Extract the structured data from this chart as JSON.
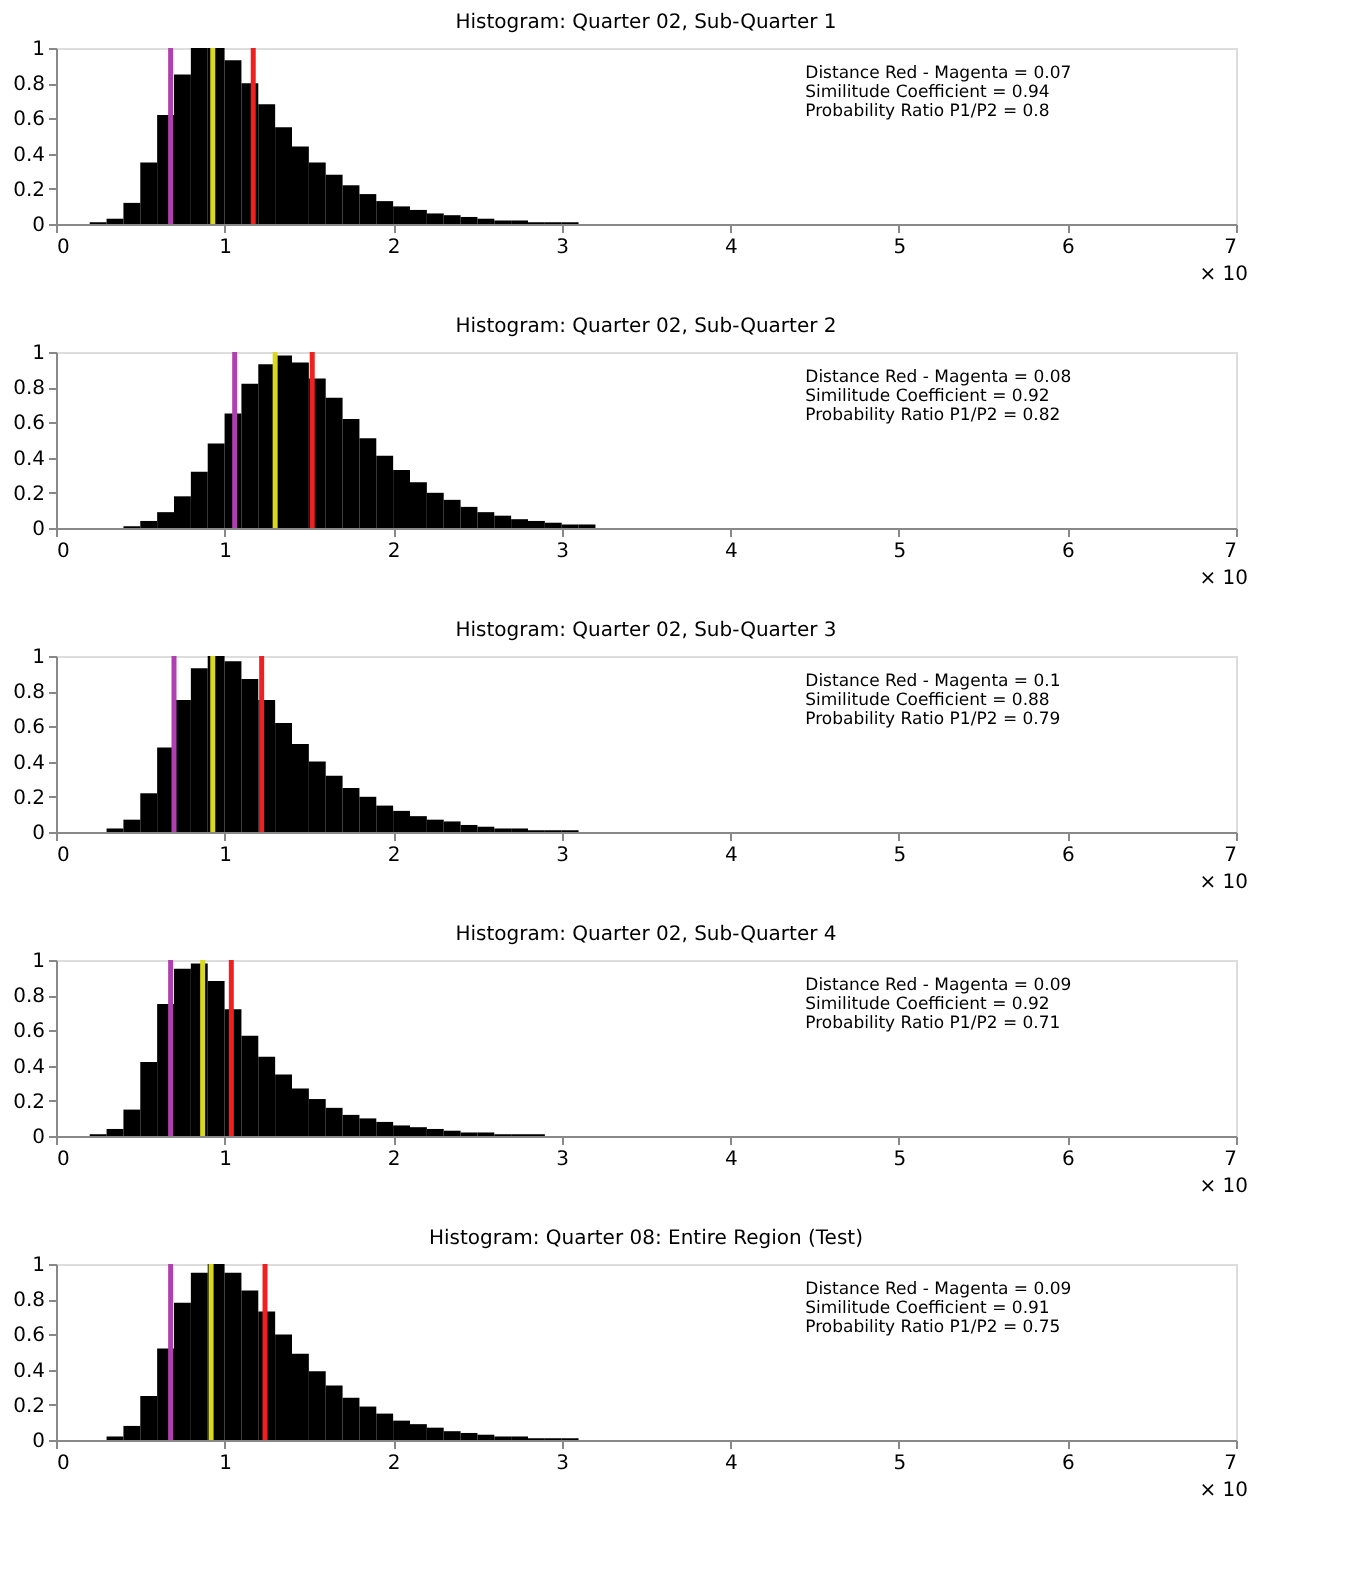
{
  "chart_data": [
    {
      "type": "histogram",
      "title": "Histogram: Quarter 02, Sub-Quarter 1",
      "color": "#000000",
      "bins": [
        0.2,
        0.3,
        0.4,
        0.5,
        0.6,
        0.7,
        0.8,
        0.9,
        1.0,
        1.1,
        1.2,
        1.3,
        1.4,
        1.5,
        1.6,
        1.7,
        1.8,
        1.9,
        2.0,
        2.1,
        2.2,
        2.3,
        2.4,
        2.5,
        2.6,
        2.7,
        2.8,
        2.9,
        3.0,
        3.1,
        3.2
      ],
      "values": [
        0.01,
        0.03,
        0.12,
        0.35,
        0.62,
        0.85,
        1.0,
        1.0,
        0.93,
        0.8,
        0.68,
        0.55,
        0.44,
        0.35,
        0.28,
        0.22,
        0.17,
        0.13,
        0.1,
        0.08,
        0.06,
        0.05,
        0.04,
        0.03,
        0.02,
        0.02,
        0.01,
        0.01,
        0.01,
        0.0
      ],
      "xlim": [
        0,
        7
      ],
      "xticks": [
        0,
        1,
        2,
        3,
        4,
        5,
        6,
        7
      ],
      "ylim": [
        0,
        1
      ],
      "yticks": [
        0,
        0.2,
        0.4,
        0.6,
        0.8,
        1
      ],
      "grid": false,
      "ref_lines": [
        {
          "axis": "x",
          "value": 0.68,
          "color": "#b03fb0"
        },
        {
          "axis": "x",
          "value": 0.93,
          "color": "#d8d820"
        },
        {
          "axis": "x",
          "value": 1.17,
          "color": "#f02020"
        }
      ],
      "annotations": [
        "Distance Red - Magenta = 0.07",
        "Similitude Coefficient = 0.94",
        "Probability Ratio P1/P2 = 0.8",
        "× 10"
      ]
    },
    {
      "type": "histogram",
      "title": "Histogram: Quarter 02, Sub-Quarter 2",
      "color": "#000000",
      "bins": [
        0.2,
        0.3,
        0.4,
        0.5,
        0.6,
        0.7,
        0.8,
        0.9,
        1.0,
        1.1,
        1.2,
        1.3,
        1.4,
        1.5,
        1.6,
        1.7,
        1.8,
        1.9,
        2.0,
        2.1,
        2.2,
        2.3,
        2.4,
        2.5,
        2.6,
        2.7,
        2.8,
        2.9,
        3.0,
        3.1,
        3.2
      ],
      "values": [
        0.0,
        0.0,
        0.01,
        0.04,
        0.09,
        0.18,
        0.32,
        0.48,
        0.65,
        0.82,
        0.93,
        0.98,
        0.94,
        0.85,
        0.74,
        0.62,
        0.51,
        0.41,
        0.33,
        0.26,
        0.2,
        0.16,
        0.12,
        0.09,
        0.07,
        0.05,
        0.04,
        0.03,
        0.02,
        0.02
      ],
      "xlim": [
        0,
        7
      ],
      "xticks": [
        0,
        1,
        2,
        3,
        4,
        5,
        6,
        7
      ],
      "ylim": [
        0,
        1
      ],
      "yticks": [
        0,
        0.2,
        0.4,
        0.6,
        0.8,
        1
      ],
      "grid": false,
      "ref_lines": [
        {
          "axis": "x",
          "value": 1.06,
          "color": "#b03fb0"
        },
        {
          "axis": "x",
          "value": 1.3,
          "color": "#d8d820"
        },
        {
          "axis": "x",
          "value": 1.52,
          "color": "#f02020"
        }
      ],
      "annotations": [
        "Distance Red - Magenta = 0.08",
        "Similitude Coefficient = 0.92",
        "Probability Ratio P1/P2 = 0.82",
        "× 10"
      ]
    },
    {
      "type": "histogram",
      "title": "Histogram: Quarter 02, Sub-Quarter 3",
      "color": "#000000",
      "bins": [
        0.2,
        0.3,
        0.4,
        0.5,
        0.6,
        0.7,
        0.8,
        0.9,
        1.0,
        1.1,
        1.2,
        1.3,
        1.4,
        1.5,
        1.6,
        1.7,
        1.8,
        1.9,
        2.0,
        2.1,
        2.2,
        2.3,
        2.4,
        2.5,
        2.6,
        2.7,
        2.8,
        2.9,
        3.0,
        3.1,
        3.2
      ],
      "values": [
        0.0,
        0.02,
        0.07,
        0.22,
        0.48,
        0.75,
        0.93,
        1.0,
        0.97,
        0.87,
        0.75,
        0.62,
        0.5,
        0.4,
        0.32,
        0.25,
        0.2,
        0.15,
        0.12,
        0.09,
        0.07,
        0.06,
        0.04,
        0.03,
        0.02,
        0.02,
        0.01,
        0.01,
        0.01,
        0.0
      ],
      "xlim": [
        0,
        7
      ],
      "xticks": [
        0,
        1,
        2,
        3,
        4,
        5,
        6,
        7
      ],
      "ylim": [
        0,
        1
      ],
      "yticks": [
        0,
        0.2,
        0.4,
        0.6,
        0.8,
        1
      ],
      "grid": false,
      "ref_lines": [
        {
          "axis": "x",
          "value": 0.7,
          "color": "#b03fb0"
        },
        {
          "axis": "x",
          "value": 0.93,
          "color": "#d8d820"
        },
        {
          "axis": "x",
          "value": 1.22,
          "color": "#f02020"
        }
      ],
      "annotations": [
        "Distance Red - Magenta = 0.1",
        "Similitude Coefficient = 0.88",
        "Probability Ratio P1/P2 = 0.79",
        "× 10"
      ]
    },
    {
      "type": "histogram",
      "title": "Histogram: Quarter 02, Sub-Quarter 4",
      "color": "#000000",
      "bins": [
        0.2,
        0.3,
        0.4,
        0.5,
        0.6,
        0.7,
        0.8,
        0.9,
        1.0,
        1.1,
        1.2,
        1.3,
        1.4,
        1.5,
        1.6,
        1.7,
        1.8,
        1.9,
        2.0,
        2.1,
        2.2,
        2.3,
        2.4,
        2.5,
        2.6,
        2.7,
        2.8,
        2.9,
        3.0,
        3.1,
        3.2
      ],
      "values": [
        0.01,
        0.04,
        0.15,
        0.42,
        0.75,
        0.95,
        0.98,
        0.88,
        0.72,
        0.57,
        0.45,
        0.35,
        0.27,
        0.21,
        0.16,
        0.12,
        0.1,
        0.08,
        0.06,
        0.05,
        0.04,
        0.03,
        0.02,
        0.02,
        0.01,
        0.01,
        0.01,
        0.0,
        0.0,
        0.0
      ],
      "xlim": [
        0,
        7
      ],
      "xticks": [
        0,
        1,
        2,
        3,
        4,
        5,
        6,
        7
      ],
      "ylim": [
        0,
        1
      ],
      "yticks": [
        0,
        0.2,
        0.4,
        0.6,
        0.8,
        1
      ],
      "grid": false,
      "ref_lines": [
        {
          "axis": "x",
          "value": 0.68,
          "color": "#b03fb0"
        },
        {
          "axis": "x",
          "value": 0.87,
          "color": "#d8d820"
        },
        {
          "axis": "x",
          "value": 1.04,
          "color": "#f02020"
        }
      ],
      "annotations": [
        "Distance Red - Magenta = 0.09",
        "Similitude Coefficient = 0.92",
        "Probability Ratio P1/P2 = 0.71",
        "× 10"
      ]
    },
    {
      "type": "histogram",
      "title": "Histogram: Quarter 08: Entire Region (Test)",
      "color": "#000000",
      "bins": [
        0.2,
        0.3,
        0.4,
        0.5,
        0.6,
        0.7,
        0.8,
        0.9,
        1.0,
        1.1,
        1.2,
        1.3,
        1.4,
        1.5,
        1.6,
        1.7,
        1.8,
        1.9,
        2.0,
        2.1,
        2.2,
        2.3,
        2.4,
        2.5,
        2.6,
        2.7,
        2.8,
        2.9,
        3.0,
        3.1,
        3.2
      ],
      "values": [
        0.0,
        0.02,
        0.08,
        0.25,
        0.52,
        0.78,
        0.95,
        1.0,
        0.95,
        0.85,
        0.73,
        0.6,
        0.49,
        0.39,
        0.31,
        0.24,
        0.19,
        0.15,
        0.11,
        0.09,
        0.07,
        0.05,
        0.04,
        0.03,
        0.02,
        0.02,
        0.01,
        0.01,
        0.01,
        0.0
      ],
      "xlim": [
        0,
        7
      ],
      "xticks": [
        0,
        1,
        2,
        3,
        4,
        5,
        6,
        7
      ],
      "ylim": [
        0,
        1
      ],
      "yticks": [
        0,
        0.2,
        0.4,
        0.6,
        0.8,
        1
      ],
      "grid": false,
      "ref_lines": [
        {
          "axis": "x",
          "value": 0.68,
          "color": "#b03fb0"
        },
        {
          "axis": "x",
          "value": 0.92,
          "color": "#d8d820"
        },
        {
          "axis": "x",
          "value": 1.24,
          "color": "#f02020"
        }
      ],
      "annotations": [
        "Distance Red - Magenta = 0.09",
        "Similitude Coefficient = 0.91",
        "Probability Ratio P1/P2 = 0.75",
        "× 10"
      ]
    }
  ]
}
